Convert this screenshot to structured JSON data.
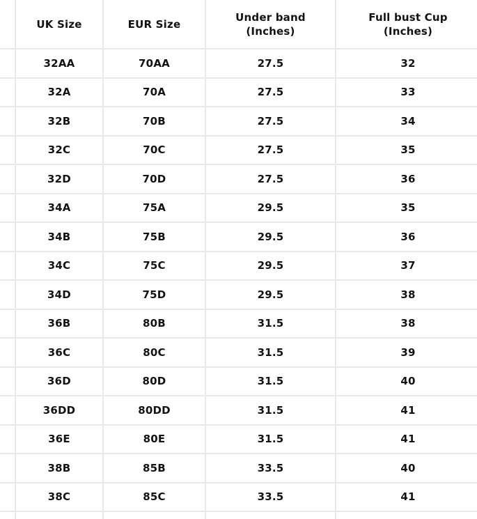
{
  "colors": {
    "border": "#e9e9e9",
    "text": "#131313",
    "background": "#ffffff"
  },
  "table": {
    "columns": [
      {
        "label": "UK Size",
        "sub": ""
      },
      {
        "label": "EUR Size",
        "sub": ""
      },
      {
        "label": "Under band",
        "sub": "(Inches)"
      },
      {
        "label": "Full bust Cup",
        "sub": "(Inches)"
      }
    ],
    "rows": [
      [
        "32AA",
        "70AA",
        "27.5",
        "32"
      ],
      [
        "32A",
        "70A",
        "27.5",
        "33"
      ],
      [
        "32B",
        "70B",
        "27.5",
        "34"
      ],
      [
        "32C",
        "70C",
        "27.5",
        "35"
      ],
      [
        "32D",
        "70D",
        "27.5",
        "36"
      ],
      [
        "34A",
        "75A",
        "29.5",
        "35"
      ],
      [
        "34B",
        "75B",
        "29.5",
        "36"
      ],
      [
        "34C",
        "75C",
        "29.5",
        "37"
      ],
      [
        "34D",
        "75D",
        "29.5",
        "38"
      ],
      [
        "36B",
        "80B",
        "31.5",
        "38"
      ],
      [
        "36C",
        "80C",
        "31.5",
        "39"
      ],
      [
        "36D",
        "80D",
        "31.5",
        "40"
      ],
      [
        "36DD",
        "80DD",
        "31.5",
        "41"
      ],
      [
        "36E",
        "80E",
        "31.5",
        "41"
      ],
      [
        "38B",
        "85B",
        "33.5",
        "40"
      ],
      [
        "38C",
        "85C",
        "33.5",
        "41"
      ],
      [
        "",
        "",
        "",
        ""
      ]
    ]
  },
  "chart_data": {
    "type": "table",
    "columns": [
      "UK Size",
      "EUR Size",
      "Under band (Inches)",
      "Full bust Cup (Inches)"
    ],
    "rows": [
      [
        "32AA",
        "70AA",
        27.5,
        32
      ],
      [
        "32A",
        "70A",
        27.5,
        33
      ],
      [
        "32B",
        "70B",
        27.5,
        34
      ],
      [
        "32C",
        "70C",
        27.5,
        35
      ],
      [
        "32D",
        "70D",
        27.5,
        36
      ],
      [
        "34A",
        "75A",
        29.5,
        35
      ],
      [
        "34B",
        "75B",
        29.5,
        36
      ],
      [
        "34C",
        "75C",
        29.5,
        37
      ],
      [
        "34D",
        "75D",
        29.5,
        38
      ],
      [
        "36B",
        "80B",
        31.5,
        38
      ],
      [
        "36C",
        "80C",
        31.5,
        39
      ],
      [
        "36D",
        "80D",
        31.5,
        40
      ],
      [
        "36DD",
        "80DD",
        31.5,
        41
      ],
      [
        "36E",
        "80E",
        31.5,
        41
      ],
      [
        "38B",
        "85B",
        33.5,
        40
      ],
      [
        "38C",
        "85C",
        33.5,
        41
      ]
    ],
    "layout_hints": {
      "grid": true,
      "left_column_cropped": true,
      "bottom_row_cropped": true
    }
  }
}
